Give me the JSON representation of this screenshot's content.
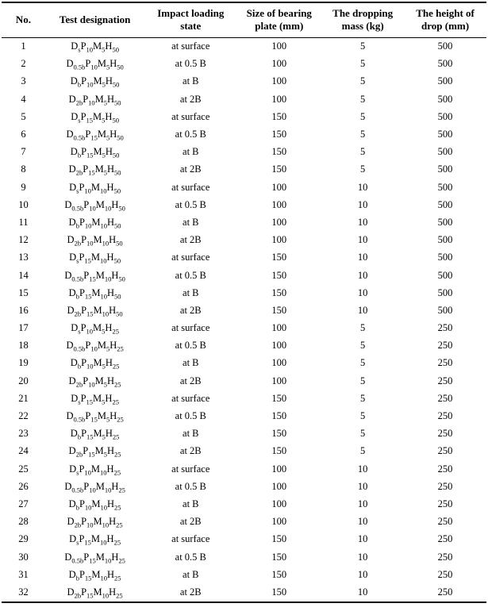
{
  "table": {
    "columns": [
      {
        "id": "no",
        "label": "No."
      },
      {
        "id": "des",
        "label": "Test designation"
      },
      {
        "id": "state",
        "label": "Impact loading state"
      },
      {
        "id": "plate",
        "label": "Size of bearing plate (mm)"
      },
      {
        "id": "mass",
        "label": "The dropping mass (kg)"
      },
      {
        "id": "drop",
        "label": "The height of drop (mm)"
      }
    ],
    "rows": [
      {
        "no": "1",
        "designation": [
          [
            "D",
            "s"
          ],
          [
            "P",
            "10"
          ],
          [
            "M",
            "5"
          ],
          [
            "H",
            "50"
          ]
        ],
        "state": "at surface",
        "plate": "100",
        "mass": "5",
        "drop": "500"
      },
      {
        "no": "2",
        "designation": [
          [
            "D",
            "0.5b"
          ],
          [
            "P",
            "10"
          ],
          [
            "M",
            "5"
          ],
          [
            "H",
            "50"
          ]
        ],
        "state": "at 0.5 B",
        "plate": "100",
        "mass": "5",
        "drop": "500"
      },
      {
        "no": "3",
        "designation": [
          [
            "D",
            "b"
          ],
          [
            "P",
            "10"
          ],
          [
            "M",
            "5"
          ],
          [
            "H",
            "50"
          ]
        ],
        "state": "at B",
        "plate": "100",
        "mass": "5",
        "drop": "500"
      },
      {
        "no": "4",
        "designation": [
          [
            "D",
            "2b"
          ],
          [
            "P",
            "10"
          ],
          [
            "M",
            "5"
          ],
          [
            "H",
            "50"
          ]
        ],
        "state": "at 2B",
        "plate": "100",
        "mass": "5",
        "drop": "500"
      },
      {
        "no": "5",
        "designation": [
          [
            "D",
            "s"
          ],
          [
            "P",
            "15"
          ],
          [
            "M",
            "5"
          ],
          [
            "H",
            "50"
          ]
        ],
        "state": "at surface",
        "plate": "150",
        "mass": "5",
        "drop": "500"
      },
      {
        "no": "6",
        "designation": [
          [
            "D",
            "0.5b"
          ],
          [
            "P",
            "15"
          ],
          [
            "M",
            "5"
          ],
          [
            "H",
            "50"
          ]
        ],
        "state": "at 0.5 B",
        "plate": "150",
        "mass": "5",
        "drop": "500"
      },
      {
        "no": "7",
        "designation": [
          [
            "D",
            "b"
          ],
          [
            "P",
            "15"
          ],
          [
            "M",
            "5"
          ],
          [
            "H",
            "50"
          ]
        ],
        "state": "at B",
        "plate": "150",
        "mass": "5",
        "drop": "500"
      },
      {
        "no": "8",
        "designation": [
          [
            "D",
            "2b"
          ],
          [
            "P",
            "15"
          ],
          [
            "M",
            "5"
          ],
          [
            "H",
            "50"
          ]
        ],
        "state": "at 2B",
        "plate": "150",
        "mass": "5",
        "drop": "500"
      },
      {
        "no": "9",
        "designation": [
          [
            "D",
            "s"
          ],
          [
            "P",
            "10"
          ],
          [
            "M",
            "10"
          ],
          [
            "H",
            "50"
          ]
        ],
        "state": "at surface",
        "plate": "100",
        "mass": "10",
        "drop": "500"
      },
      {
        "no": "10",
        "designation": [
          [
            "D",
            "0.5b"
          ],
          [
            "P",
            "10"
          ],
          [
            "M",
            "10"
          ],
          [
            "H",
            "50"
          ]
        ],
        "state": "at 0.5 B",
        "plate": "100",
        "mass": "10",
        "drop": "500"
      },
      {
        "no": "11",
        "designation": [
          [
            "D",
            "b"
          ],
          [
            "P",
            "10"
          ],
          [
            "M",
            "10"
          ],
          [
            "H",
            "50"
          ]
        ],
        "state": "at B",
        "plate": "100",
        "mass": "10",
        "drop": "500"
      },
      {
        "no": "12",
        "designation": [
          [
            "D",
            "2b"
          ],
          [
            "P",
            "10"
          ],
          [
            "M",
            "10"
          ],
          [
            "H",
            "50"
          ]
        ],
        "state": "at 2B",
        "plate": "100",
        "mass": "10",
        "drop": "500"
      },
      {
        "no": "13",
        "designation": [
          [
            "D",
            "s"
          ],
          [
            "P",
            "15"
          ],
          [
            "M",
            "10"
          ],
          [
            "H",
            "50"
          ]
        ],
        "state": "at surface",
        "plate": "150",
        "mass": "10",
        "drop": "500"
      },
      {
        "no": "14",
        "designation": [
          [
            "D",
            "0.5b"
          ],
          [
            "P",
            "15"
          ],
          [
            "M",
            "10"
          ],
          [
            "H",
            "50"
          ]
        ],
        "state": "at 0.5 B",
        "plate": "150",
        "mass": "10",
        "drop": "500"
      },
      {
        "no": "15",
        "designation": [
          [
            "D",
            "b"
          ],
          [
            "P",
            "15"
          ],
          [
            "M",
            "10"
          ],
          [
            "H",
            "50"
          ]
        ],
        "state": "at B",
        "plate": "150",
        "mass": "10",
        "drop": "500"
      },
      {
        "no": "16",
        "designation": [
          [
            "D",
            "2b"
          ],
          [
            "P",
            "15"
          ],
          [
            "M",
            "10"
          ],
          [
            "H",
            "50"
          ]
        ],
        "state": "at 2B",
        "plate": "150",
        "mass": "10",
        "drop": "500"
      },
      {
        "no": "17",
        "designation": [
          [
            "D",
            "s"
          ],
          [
            "P",
            "10"
          ],
          [
            "M",
            "5"
          ],
          [
            "H",
            "25"
          ]
        ],
        "state": "at surface",
        "plate": "100",
        "mass": "5",
        "drop": "250"
      },
      {
        "no": "18",
        "designation": [
          [
            "D",
            "0.5b"
          ],
          [
            "P",
            "10"
          ],
          [
            "M",
            "5"
          ],
          [
            "H",
            "25"
          ]
        ],
        "state": "at 0.5 B",
        "plate": "100",
        "mass": "5",
        "drop": "250"
      },
      {
        "no": "19",
        "designation": [
          [
            "D",
            "b"
          ],
          [
            "P",
            "10"
          ],
          [
            "M",
            "5"
          ],
          [
            "H",
            "25"
          ]
        ],
        "state": "at B",
        "plate": "100",
        "mass": "5",
        "drop": "250"
      },
      {
        "no": "20",
        "designation": [
          [
            "D",
            "2b"
          ],
          [
            "P",
            "10"
          ],
          [
            "M",
            "5"
          ],
          [
            "H",
            "25"
          ]
        ],
        "state": "at 2B",
        "plate": "100",
        "mass": "5",
        "drop": "250"
      },
      {
        "no": "21",
        "designation": [
          [
            "D",
            "s"
          ],
          [
            "P",
            "15"
          ],
          [
            "M",
            "5"
          ],
          [
            "H",
            "25"
          ]
        ],
        "state": "at surface",
        "plate": "150",
        "mass": "5",
        "drop": "250"
      },
      {
        "no": "22",
        "designation": [
          [
            "D",
            "0.5b"
          ],
          [
            "P",
            "15"
          ],
          [
            "M",
            "5"
          ],
          [
            "H",
            "25"
          ]
        ],
        "state": "at 0.5 B",
        "plate": "150",
        "mass": "5",
        "drop": "250"
      },
      {
        "no": "23",
        "designation": [
          [
            "D",
            "b"
          ],
          [
            "P",
            "15"
          ],
          [
            "M",
            "5"
          ],
          [
            "H",
            "25"
          ]
        ],
        "state": "at B",
        "plate": "150",
        "mass": "5",
        "drop": "250"
      },
      {
        "no": "24",
        "designation": [
          [
            "D",
            "2b"
          ],
          [
            "P",
            "15"
          ],
          [
            "M",
            "5"
          ],
          [
            "H",
            "25"
          ]
        ],
        "state": "at 2B",
        "plate": "150",
        "mass": "5",
        "drop": "250"
      },
      {
        "no": "25",
        "designation": [
          [
            "D",
            "s"
          ],
          [
            "P",
            "10"
          ],
          [
            "M",
            "10"
          ],
          [
            "H",
            "25"
          ]
        ],
        "state": "at surface",
        "plate": "100",
        "mass": "10",
        "drop": "250"
      },
      {
        "no": "26",
        "designation": [
          [
            "D",
            "0.5b"
          ],
          [
            "P",
            "10"
          ],
          [
            "M",
            "10"
          ],
          [
            "H",
            "25"
          ]
        ],
        "state": "at 0.5 B",
        "plate": "100",
        "mass": "10",
        "drop": "250"
      },
      {
        "no": "27",
        "designation": [
          [
            "D",
            "b"
          ],
          [
            "P",
            "10"
          ],
          [
            "M",
            "10"
          ],
          [
            "H",
            "25"
          ]
        ],
        "state": "at B",
        "plate": "100",
        "mass": "10",
        "drop": "250"
      },
      {
        "no": "28",
        "designation": [
          [
            "D",
            "2b"
          ],
          [
            "P",
            "10"
          ],
          [
            "M",
            "10"
          ],
          [
            "H",
            "25"
          ]
        ],
        "state": "at 2B",
        "plate": "100",
        "mass": "10",
        "drop": "250"
      },
      {
        "no": "29",
        "designation": [
          [
            "D",
            "s"
          ],
          [
            "P",
            "15"
          ],
          [
            "M",
            "10"
          ],
          [
            "H",
            "25"
          ]
        ],
        "state": "at surface",
        "plate": "150",
        "mass": "10",
        "drop": "250"
      },
      {
        "no": "30",
        "designation": [
          [
            "D",
            "0.5b"
          ],
          [
            "P",
            "15"
          ],
          [
            "M",
            "10"
          ],
          [
            "H",
            "25"
          ]
        ],
        "state": "at 0.5 B",
        "plate": "150",
        "mass": "10",
        "drop": "250"
      },
      {
        "no": "31",
        "designation": [
          [
            "D",
            "b"
          ],
          [
            "P",
            "15"
          ],
          [
            "M",
            "10"
          ],
          [
            "H",
            "25"
          ]
        ],
        "state": "at B",
        "plate": "150",
        "mass": "10",
        "drop": "250"
      },
      {
        "no": "32",
        "designation": [
          [
            "D",
            "2b"
          ],
          [
            "P",
            "15"
          ],
          [
            "M",
            "10"
          ],
          [
            "H",
            "25"
          ]
        ],
        "state": "at 2B",
        "plate": "150",
        "mass": "10",
        "drop": "250"
      }
    ]
  }
}
